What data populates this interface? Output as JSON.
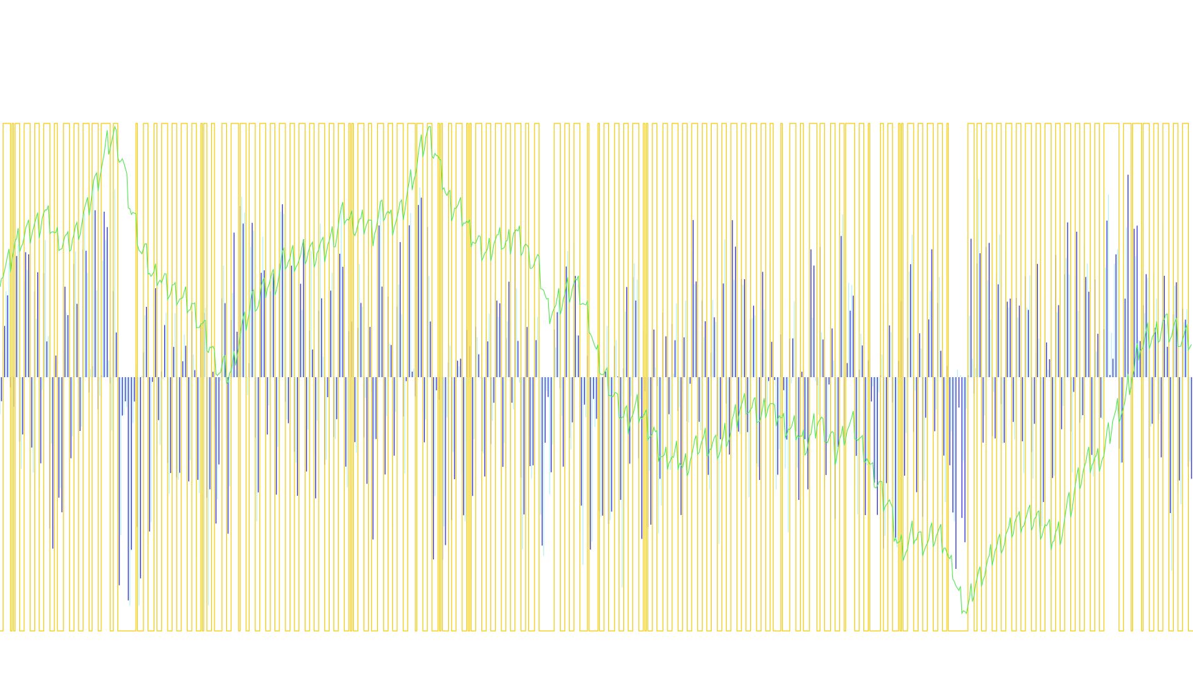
{
  "chart_data": {
    "type": "bar",
    "title": "",
    "xlabel": "",
    "ylabel": "",
    "grid": false,
    "legend": "none",
    "ylim": [
      -110,
      110
    ],
    "x_count": 790,
    "series": [
      {
        "kind": "bar",
        "color": "#3232dc",
        "seed": 1
      },
      {
        "kind": "bar",
        "color": "#b9f2f5",
        "seed": 2
      },
      {
        "kind": "line",
        "color": "#55e655",
        "seed": 3
      },
      {
        "kind": "step",
        "color": "#f2cc10",
        "high": 100,
        "low": -100,
        "seed": 4
      }
    ],
    "colors": {
      "background": "#ffffff",
      "bars_primary": "#3232dc",
      "bars_secondary": "#b9f2f5",
      "oscillator": "#55e655",
      "signal": "#f2cc10"
    }
  }
}
